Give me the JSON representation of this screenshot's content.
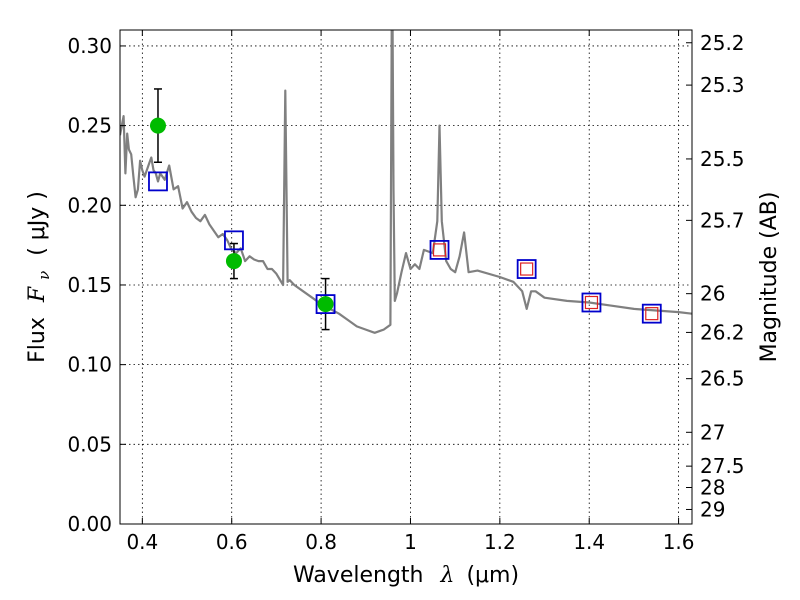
{
  "chart_data": {
    "type": "scatter",
    "xlabel_main": "Wavelength",
    "xlabel_symbol": "λ",
    "xlabel_unit": "(μm)",
    "ylabel_main": "Flux",
    "ylabel_symbol": "F",
    "ylabel_sub": "ν",
    "ylabel_unit": "( μJy )",
    "ylabel_right": "Magnitude (AB)",
    "xlim": [
      0.35,
      1.63
    ],
    "ylim": [
      0.0,
      0.31
    ],
    "grid": true,
    "x_ticks": [
      {
        "value": 0.4,
        "label": "0.4"
      },
      {
        "value": 0.6,
        "label": "0.6"
      },
      {
        "value": 0.8,
        "label": "0.8"
      },
      {
        "value": 1.0,
        "label": "1"
      },
      {
        "value": 1.2,
        "label": "1.2"
      },
      {
        "value": 1.4,
        "label": "1.4"
      },
      {
        "value": 1.6,
        "label": "1.6"
      }
    ],
    "y_ticks": [
      {
        "value": 0.0,
        "label": "0.00"
      },
      {
        "value": 0.05,
        "label": "0.05"
      },
      {
        "value": 0.1,
        "label": "0.10"
      },
      {
        "value": 0.15,
        "label": "0.15"
      },
      {
        "value": 0.2,
        "label": "0.20"
      },
      {
        "value": 0.25,
        "label": "0.25"
      },
      {
        "value": 0.3,
        "label": "0.30"
      }
    ],
    "mag_ticks": [
      {
        "value": 25.2,
        "label": "25.2"
      },
      {
        "value": 25.3,
        "label": "25.3"
      },
      {
        "value": 25.5,
        "label": "25.5"
      },
      {
        "value": 25.7,
        "label": "25.7"
      },
      {
        "value": 26.0,
        "label": "26"
      },
      {
        "value": 26.2,
        "label": "26.2"
      },
      {
        "value": 26.5,
        "label": "26.5"
      },
      {
        "value": 27.0,
        "label": "27"
      },
      {
        "value": 27.5,
        "label": "27.5"
      },
      {
        "value": 28.0,
        "label": "28"
      },
      {
        "value": 29.0,
        "label": "29"
      }
    ],
    "series": [
      {
        "kind": "line",
        "color": "#808080",
        "x": [
          0.35,
          0.358,
          0.362,
          0.366,
          0.37,
          0.375,
          0.38,
          0.385,
          0.39,
          0.395,
          0.4,
          0.405,
          0.41,
          0.415,
          0.42,
          0.425,
          0.43,
          0.435,
          0.44,
          0.45,
          0.46,
          0.47,
          0.48,
          0.49,
          0.5,
          0.51,
          0.52,
          0.53,
          0.54,
          0.55,
          0.56,
          0.57,
          0.58,
          0.59,
          0.6,
          0.61,
          0.62,
          0.63,
          0.64,
          0.65,
          0.66,
          0.67,
          0.68,
          0.69,
          0.7,
          0.715,
          0.72,
          0.725,
          0.73,
          0.74,
          0.76,
          0.78,
          0.8,
          0.82,
          0.84,
          0.86,
          0.88,
          0.9,
          0.92,
          0.94,
          0.955,
          0.958,
          0.96,
          0.962,
          0.965,
          0.97,
          0.98,
          0.99,
          1.0,
          1.01,
          1.02,
          1.03,
          1.05,
          1.06,
          1.065,
          1.07,
          1.08,
          1.09,
          1.1,
          1.11,
          1.12,
          1.13,
          1.15,
          1.2,
          1.23,
          1.25,
          1.26,
          1.27,
          1.28,
          1.3,
          1.35,
          1.4,
          1.45,
          1.5,
          1.55,
          1.6,
          1.63
        ],
        "y": [
          0.244,
          0.256,
          0.22,
          0.245,
          0.235,
          0.232,
          0.218,
          0.205,
          0.21,
          0.228,
          0.222,
          0.218,
          0.222,
          0.226,
          0.23,
          0.222,
          0.22,
          0.215,
          0.22,
          0.216,
          0.225,
          0.21,
          0.212,
          0.198,
          0.202,
          0.196,
          0.192,
          0.19,
          0.194,
          0.188,
          0.184,
          0.18,
          0.182,
          0.178,
          0.172,
          0.17,
          0.173,
          0.165,
          0.168,
          0.166,
          0.165,
          0.165,
          0.16,
          0.16,
          0.157,
          0.15,
          0.272,
          0.152,
          0.153,
          0.15,
          0.146,
          0.142,
          0.138,
          0.135,
          0.132,
          0.128,
          0.124,
          0.122,
          0.12,
          0.122,
          0.125,
          0.31,
          0.31,
          0.21,
          0.14,
          0.145,
          0.158,
          0.17,
          0.16,
          0.163,
          0.16,
          0.172,
          0.17,
          0.19,
          0.25,
          0.19,
          0.165,
          0.16,
          0.158,
          0.168,
          0.183,
          0.158,
          0.159,
          0.155,
          0.152,
          0.146,
          0.135,
          0.146,
          0.146,
          0.142,
          0.14,
          0.139,
          0.137,
          0.135,
          0.134,
          0.133,
          0.132
        ]
      },
      {
        "kind": "points",
        "marker": "circle",
        "color": "#00bb00",
        "x": [
          0.435,
          0.605,
          0.81
        ],
        "y": [
          0.25,
          0.165,
          0.138
        ],
        "yerr": [
          0.023,
          0.011,
          0.016
        ]
      },
      {
        "kind": "points",
        "marker": "square",
        "color": "#0000cc",
        "x": [
          0.435,
          0.605,
          0.81,
          1.065,
          1.26,
          1.405,
          1.54
        ],
        "y": [
          0.215,
          0.178,
          0.138,
          0.172,
          0.16,
          0.139,
          0.132
        ]
      },
      {
        "kind": "points",
        "marker": "square-small",
        "color": "#dd2222",
        "x": [
          1.065,
          1.26,
          1.405,
          1.54
        ],
        "y": [
          0.172,
          0.16,
          0.139,
          0.132
        ]
      }
    ]
  }
}
